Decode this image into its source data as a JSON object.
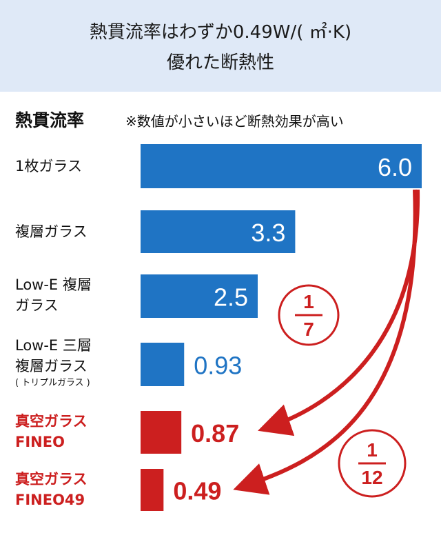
{
  "header": {
    "line1": "熱貫流率はわずか0.49W/( ㎡·K)",
    "line2": "優れた断熱性"
  },
  "section": {
    "title": "熱貫流率",
    "note": "※数値が小さいほど断熱効果が高い"
  },
  "colors": {
    "blue": "#1f74c4",
    "red": "#cc1f1f"
  },
  "chart_data": {
    "type": "bar",
    "orientation": "horizontal",
    "categories": [
      "1枚ガラス",
      "複層ガラス",
      "Low-E 複層ガラス",
      "Low-E 三層複層ガラス（トリプルガラス）",
      "真空ガラス FINEO",
      "真空ガラス FINEO49"
    ],
    "values": [
      6.0,
      3.3,
      2.5,
      0.93,
      0.87,
      0.49
    ],
    "value_labels": [
      "6.0",
      "3.3",
      "2.5",
      "0.93",
      "0.87",
      "0.49"
    ],
    "bar_colors": [
      "blue",
      "blue",
      "blue",
      "blue",
      "red",
      "red"
    ],
    "xlim": [
      0,
      6.0
    ],
    "annotations": [
      {
        "numerator": "1",
        "denominator": "7",
        "from": "1枚ガラス",
        "to": "真空ガラス FINEO"
      },
      {
        "numerator": "1",
        "denominator": "12",
        "from": "1枚ガラス",
        "to": "真空ガラス FINEO49"
      }
    ]
  },
  "labels": {
    "cat1": "1枚ガラス",
    "cat2": "複層ガラス",
    "cat3a": "Low-E 複層",
    "cat3b": "ガラス",
    "cat4a": "Low-E 三層",
    "cat4b": "複層ガラス",
    "cat4c": "( トリプルガラス )",
    "cat5a": "真空ガラス",
    "cat5b": "FINEO",
    "cat6a": "真空ガラス",
    "cat6b": "FINEO49"
  }
}
